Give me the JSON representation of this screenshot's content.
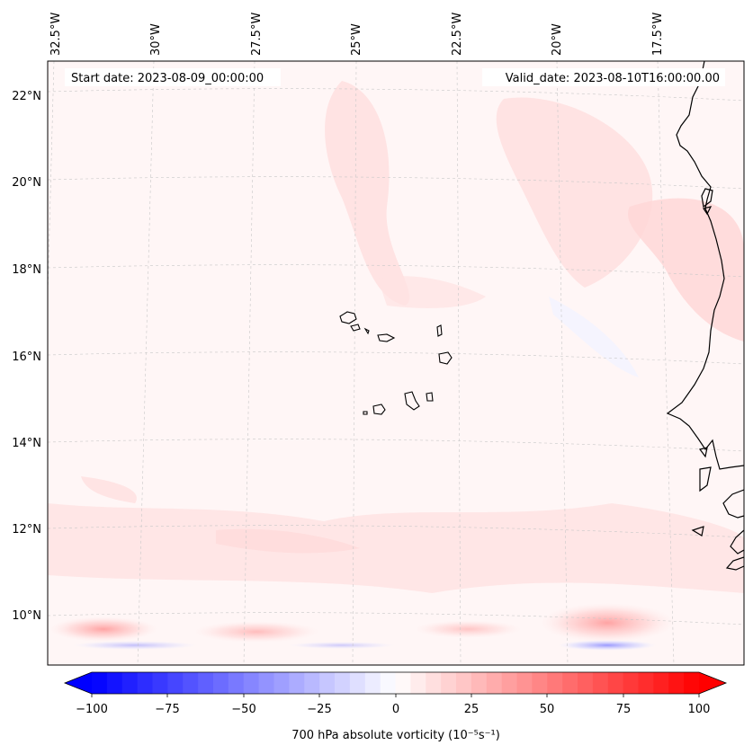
{
  "header": {
    "start_date": "Start date: 2023-08-09_00:00:00",
    "valid_date": "Valid_date: 2023-08-10T16:00:00.00"
  },
  "map": {
    "lon_labels": [
      "32.5°W",
      "30°W",
      "27.5°W",
      "25°W",
      "22.5°W",
      "20°W",
      "17.5°W"
    ],
    "lat_labels": [
      "22°N",
      "20°N",
      "18°N",
      "16°N",
      "14°N",
      "12°N",
      "10°N"
    ],
    "grid": true,
    "coastline_color": "#000000",
    "gridline_color": "#c8c8c8"
  },
  "colorbar": {
    "label": "700 hPa absolute vorticity (10⁻⁵s⁻¹)",
    "ticks": [
      "−100",
      "−75",
      "−50",
      "−25",
      "0",
      "25",
      "50",
      "75",
      "100"
    ],
    "range": [
      -100,
      100
    ],
    "step": 5,
    "min_color": "#0000ff",
    "mid_color": "#ffffff",
    "max_color": "#ff0000",
    "extend": "both"
  }
}
